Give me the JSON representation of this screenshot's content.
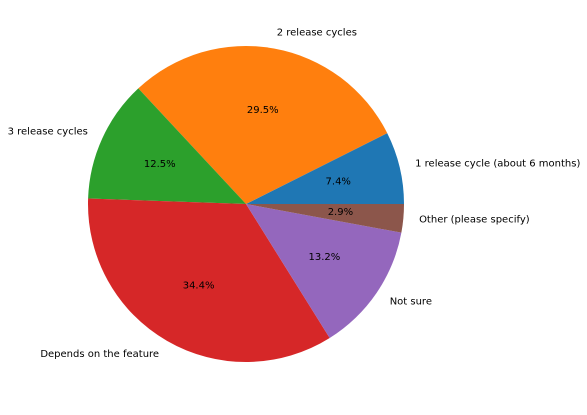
{
  "chart_data": {
    "type": "pie",
    "start_angle": "counterclockwise from 0°",
    "slices": [
      {
        "label": "1 release cycle (about 6 months)",
        "value": 7.4,
        "pct_label": "7.4%",
        "color": "#1f77b4"
      },
      {
        "label": "2 release cycles",
        "value": 29.5,
        "pct_label": "29.5%",
        "color": "#ff7f0e"
      },
      {
        "label": "3 release cycles",
        "value": 12.5,
        "pct_label": "12.5%",
        "color": "#2ca02c"
      },
      {
        "label": "Depends on the feature",
        "value": 34.4,
        "pct_label": "34.4%",
        "color": "#d62728"
      },
      {
        "label": "Not sure",
        "value": 13.2,
        "pct_label": "13.2%",
        "color": "#9467bd"
      },
      {
        "label": "Other (please specify)",
        "value": 2.9,
        "pct_label": "2.9%",
        "color": "#8c564b"
      }
    ]
  }
}
